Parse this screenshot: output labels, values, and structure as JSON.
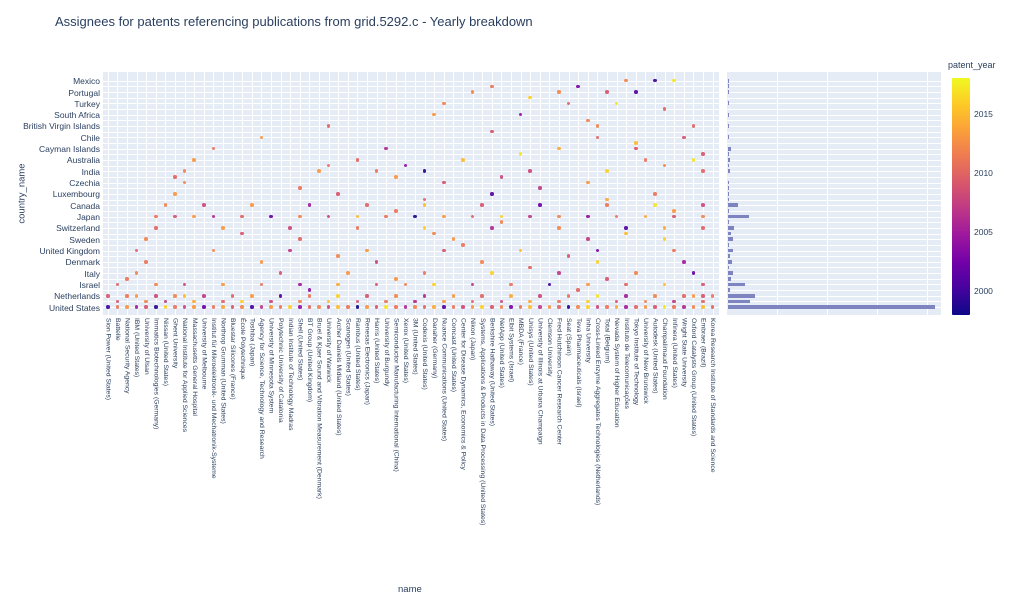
{
  "title": "Assignees for patents referencing publications from grid.5292.c - Yearly breakdown",
  "axes": {
    "x_title": "name",
    "y_title": "country_name"
  },
  "colorbar": {
    "title": "patent_year",
    "ticks": [
      2015,
      2010,
      2005,
      2000
    ],
    "min": 1998,
    "max": 2018,
    "palette": [
      "#0d0887",
      "#46039f",
      "#7201a8",
      "#9c179e",
      "#bd3786",
      "#d8576b",
      "#ed7953",
      "#fb9f3a",
      "#fdca26",
      "#f0f921"
    ]
  },
  "colors": {
    "plot_bg": "#e5ecf6",
    "grid": "#ffffff",
    "bar": "#7e84c0",
    "text": "#2a3f5f"
  },
  "chart_data": {
    "type": "scatter+bar",
    "x_categories": [
      "Sion Power (United States)",
      "Battelle",
      "National Security Agency",
      "IBM (United States)",
      "University of Ulsan",
      "Immatics Biotechnologies (Germany)",
      "Nissan (United States)",
      "Ghent University",
      "National Institute for Applied Sciences",
      "Massachusetts General Hospital",
      "University of Melbourne",
      "Institut für Mikroelektronik- und Mechatronik-Systeme",
      "Northrop Grumman (United States)",
      "Bluestar Silicones (France)",
      "École Polytechnique",
      "Toshiba (Japan)",
      "Agency for Science, Technology and Research",
      "University of Minnesota System",
      "Polytechnic University of Catalonia",
      "Indian Institute of Technology Madras",
      "Shell (United States)",
      "BT Group (United Kingdom)",
      "Bruel & Kjaer Sound and Vibration Measurement (Denmark)",
      "University of Warwick",
      "Archer Daniels Midland (United States)",
      "Scanogen (United States)",
      "Rambus (United States)",
      "Renesas Electronics (Japan)",
      "Harris (United States)",
      "University of Burgundy",
      "Semiconductor Manufacturing International (China)",
      "Xerox (United States)",
      "3M (United States)",
      "Codexis (United States)",
      "Danaher (Germany)",
      "Nuance Communications (United States)",
      "Comcast (United States)",
      "Center for Disease Dynamics, Economics & Policy",
      "Nikon (Japan)",
      "Systems, Applications & Products in Data Processing (United States)",
      "Berkshire Hathaway (United States)",
      "NetApp (United States)",
      "Elbit Systems (Israel)",
      "MBDA (France)",
      "Unisys (United States)",
      "University of Illinois at Urbana Champaign",
      "Clemson University",
      "Fred Hutchinson Cancer Research Center",
      "Seat (Spain)",
      "Teva Pharmaceuticals (Israel)",
      "Inha University",
      "Cross-Linked Enzyme Aggregates Technologies (Netherlands)",
      "Total (Belgium)",
      "Nevada System of Higher Education",
      "Instituto de Telecomunicações",
      "Tokyo Institute of Technology",
      "University of New Brunswick",
      "Autodesk (United States)",
      "Champalimaud Foundation",
      "Infinera (United States)",
      "Wright State University",
      "Oxford Catalysts Group (United States)",
      "Embraer (Brazil)",
      "Korea Research Institute of Standards and Science"
    ],
    "y_categories_labeled": [
      "Mexico",
      "Portugal",
      "Turkey",
      "South Africa",
      "British Virgin Islands",
      "Chile",
      "Cayman Islands",
      "Australia",
      "India",
      "Czechia",
      "Luxembourg",
      "Canada",
      "Japan",
      "Switzerland",
      "Sweden",
      "United Kingdom",
      "Denmark",
      "Italy",
      "Israel",
      "Netherlands",
      "United States"
    ],
    "n_y_rows": 41,
    "label_row_step": 2,
    "bar_values": [
      1,
      1,
      1,
      0,
      1,
      0,
      1,
      0,
      1,
      0,
      1,
      0,
      3,
      1,
      2,
      1,
      2,
      0,
      1,
      1,
      1,
      1,
      10,
      1,
      21,
      1,
      6,
      3,
      5,
      1,
      5,
      2,
      4,
      1,
      5,
      3,
      17,
      2,
      27,
      22,
      207
    ],
    "bar_axis_max": 212,
    "bar_grid_step": 50,
    "scatter_rows": [
      {
        "y": 0,
        "x": [
          54,
          57,
          59
        ],
        "years": [
          2012,
          2000,
          2017
        ]
      },
      {
        "y": 1,
        "x": [
          40,
          49
        ],
        "years": [
          2011,
          2003
        ]
      },
      {
        "y": 2,
        "x": [
          38,
          47,
          52,
          55
        ],
        "years": [
          2012,
          2012,
          2009,
          2001
        ]
      },
      {
        "y": 3,
        "x": [
          44
        ],
        "years": [
          2016
        ]
      },
      {
        "y": 4,
        "x": [
          35,
          48,
          53
        ],
        "years": [
          2012,
          2010,
          2017
        ]
      },
      {
        "y": 5,
        "x": [
          58
        ],
        "years": [
          2010
        ]
      },
      {
        "y": 6,
        "x": [
          34,
          43
        ],
        "years": [
          2013,
          2004
        ]
      },
      {
        "y": 7,
        "x": [
          50
        ],
        "years": [
          2012
        ]
      },
      {
        "y": 8,
        "x": [
          23,
          51,
          61
        ],
        "years": [
          2010,
          2012,
          2010
        ]
      },
      {
        "y": 9,
        "x": [
          40
        ],
        "years": [
          2009
        ]
      },
      {
        "y": 10,
        "x": [
          16,
          51,
          60
        ],
        "years": [
          2013,
          2010,
          2009
        ]
      },
      {
        "y": 11,
        "x": [
          55
        ],
        "years": [
          2015
        ]
      },
      {
        "y": 12,
        "x": [
          11,
          29,
          47,
          55
        ],
        "years": [
          2011,
          2006,
          2014,
          2009
        ]
      },
      {
        "y": 13,
        "x": [
          43,
          62
        ],
        "years": [
          2017,
          2009
        ]
      },
      {
        "y": 14,
        "x": [
          9,
          26,
          37,
          56,
          61
        ],
        "years": [
          2013,
          2010,
          2015,
          2011,
          2017
        ]
      },
      {
        "y": 15,
        "x": [
          23,
          31,
          58
        ],
        "years": [
          2011,
          2004,
          2012
        ]
      },
      {
        "y": 16,
        "x": [
          8,
          22,
          28,
          33,
          44,
          52,
          62
        ],
        "years": [
          2012,
          2013,
          2011,
          1999,
          2008,
          2016,
          2010
        ]
      },
      {
        "y": 17,
        "x": [
          7,
          30,
          41
        ],
        "years": [
          2010,
          2013,
          2008
        ]
      },
      {
        "y": 18,
        "x": [
          8,
          35,
          50
        ],
        "years": [
          2012,
          2009,
          2013
        ]
      },
      {
        "y": 19,
        "x": [
          20,
          45
        ],
        "years": [
          2011,
          2007
        ]
      },
      {
        "y": 20,
        "x": [
          7,
          24,
          40,
          57
        ],
        "years": [
          2013,
          2009,
          2001,
          2011
        ]
      },
      {
        "y": 21,
        "x": [
          33,
          52
        ],
        "years": [
          2010,
          2014
        ]
      },
      {
        "y": 22,
        "x": [
          6,
          10,
          15,
          21,
          27,
          33,
          39,
          45,
          52,
          57,
          62
        ],
        "years": [
          2012,
          2008,
          2013,
          2005,
          2010,
          2015,
          2009,
          2002,
          2011,
          2017,
          2008
        ]
      },
      {
        "y": 23,
        "x": [
          30,
          59
        ],
        "years": [
          2011,
          2013
        ]
      },
      {
        "y": 24,
        "x": [
          5,
          7,
          9,
          11,
          14,
          17,
          20,
          23,
          26,
          29,
          32,
          35,
          38,
          41,
          44,
          47,
          50,
          53,
          56,
          59,
          62
        ],
        "years": [
          2011,
          2009,
          2013,
          2006,
          2010,
          2002,
          2012,
          2008,
          2015,
          2011,
          1999,
          2013,
          2010,
          2016,
          2007,
          2012,
          2004,
          2011,
          2014,
          2009,
          2012
        ]
      },
      {
        "y": 25,
        "x": [
          41
        ],
        "years": [
          2012
        ]
      },
      {
        "y": 26,
        "x": [
          5,
          12,
          19,
          26,
          33,
          40,
          47,
          54,
          58,
          62
        ],
        "years": [
          2010,
          2013,
          2008,
          2011,
          2016,
          2006,
          2012,
          2001,
          2014,
          2010
        ]
      },
      {
        "y": 27,
        "x": [
          14,
          34,
          54
        ],
        "years": [
          2009,
          2012,
          2015
        ]
      },
      {
        "y": 28,
        "x": [
          4,
          20,
          36,
          50,
          58
        ],
        "years": [
          2012,
          2010,
          2013,
          2007,
          2016
        ]
      },
      {
        "y": 29,
        "x": [
          37
        ],
        "years": [
          2011
        ]
      },
      {
        "y": 30,
        "x": [
          3,
          11,
          19,
          27,
          35,
          43,
          51,
          59
        ],
        "years": [
          2010,
          2012,
          2007,
          2013,
          2009,
          2015,
          2003,
          2011
        ]
      },
      {
        "y": 31,
        "x": [
          24,
          48
        ],
        "years": [
          2012,
          2009
        ]
      },
      {
        "y": 32,
        "x": [
          4,
          16,
          28,
          39,
          51,
          60
        ],
        "years": [
          2011,
          2013,
          2008,
          2012,
          2016,
          2005
        ]
      },
      {
        "y": 33,
        "x": [
          44
        ],
        "years": [
          2010
        ]
      },
      {
        "y": 34,
        "x": [
          3,
          18,
          25,
          33,
          40,
          47,
          55,
          61
        ],
        "years": [
          2012,
          2009,
          2013,
          2011,
          2016,
          2007,
          2012,
          2002
        ]
      },
      {
        "y": 35,
        "x": [
          2,
          30,
          52
        ],
        "years": [
          2011,
          2013,
          2009
        ]
      },
      {
        "y": 36,
        "x": [
          1,
          5,
          8,
          12,
          16,
          20,
          24,
          28,
          31,
          34,
          38,
          42,
          46,
          50,
          54,
          58,
          62
        ],
        "years": [
          2010,
          2012,
          2008,
          2013,
          2011,
          2005,
          2014,
          2009,
          2012,
          2016,
          2007,
          2011,
          2000,
          2013,
          2010,
          2015,
          2009
        ]
      },
      {
        "y": 37,
        "x": [
          21,
          49
        ],
        "years": [
          2004,
          2010
        ]
      },
      {
        "y": 38,
        "x": [
          0,
          2,
          3,
          5,
          7,
          8,
          10,
          13,
          15,
          18,
          21,
          24,
          27,
          30,
          33,
          36,
          39,
          42,
          45,
          48,
          51,
          54,
          57,
          60,
          61,
          62,
          63
        ],
        "years": [
          2009,
          2011,
          2013,
          2008,
          2012,
          2015,
          2007,
          2010,
          2013,
          2001,
          2011,
          2016,
          2009,
          2012,
          2006,
          2013,
          2010,
          2014,
          2008,
          2011,
          2017,
          2005,
          2012,
          2010,
          2013,
          2009,
          2011
        ]
      },
      {
        "y": 39,
        "x": [
          1,
          4,
          6,
          9,
          12,
          14,
          17,
          20,
          23,
          26,
          29,
          32,
          35,
          38,
          41,
          44,
          47,
          50,
          53,
          56,
          59,
          62
        ],
        "years": [
          2009,
          2012,
          2007,
          2014,
          2010,
          2016,
          2008,
          2012,
          2015,
          2009,
          2011,
          2006,
          2013,
          2010,
          2008,
          2014,
          2011,
          2016,
          2009,
          2012,
          2007,
          2010
        ]
      },
      {
        "y": 40,
        "x": [
          0,
          1,
          2,
          3,
          4,
          5,
          6,
          7,
          8,
          9,
          10,
          11,
          12,
          13,
          14,
          15,
          16,
          17,
          18,
          19,
          20,
          21,
          22,
          23,
          24,
          25,
          26,
          27,
          28,
          29,
          30,
          31,
          32,
          33,
          34,
          35,
          36,
          37,
          38,
          39,
          40,
          41,
          42,
          43,
          44,
          45,
          46,
          47,
          48,
          49,
          50,
          51,
          52,
          53,
          54,
          55,
          56,
          57,
          58,
          59,
          60,
          61,
          62,
          63
        ],
        "years": [
          2000,
          2011,
          2013,
          2005,
          2009,
          1999,
          2016,
          2011,
          2008,
          2013,
          2002,
          2011,
          2014,
          2009,
          2012,
          2000,
          2007,
          2013,
          2011,
          2016,
          2004,
          2010,
          2012,
          2008,
          2015,
          2011,
          1998,
          2013,
          2009,
          2017,
          2011,
          2006,
          2012,
          2010,
          2014,
          2001,
          2011,
          2008,
          2013,
          2016,
          2009,
          2012,
          2003,
          2011,
          2015,
          2007,
          2013,
          2010,
          1999,
          2012,
          2016,
          2008,
          2011,
          2014,
          2005,
          2010,
          2013,
          2009,
          2017,
          2011,
          2006,
          2012,
          2015,
          2010
        ]
      }
    ]
  }
}
